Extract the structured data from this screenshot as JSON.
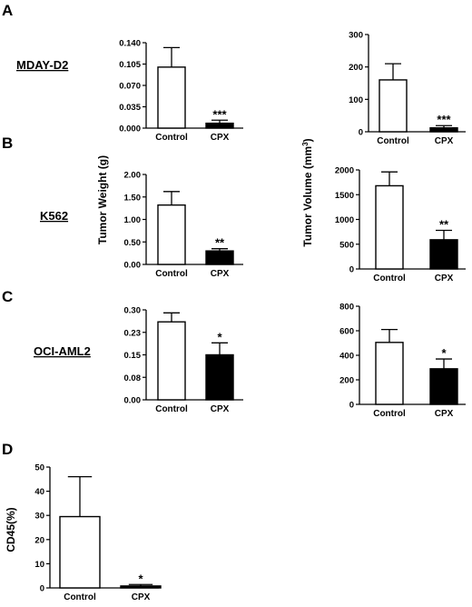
{
  "panels": {
    "A": {
      "label": "A",
      "row_label": "MDAY-D2"
    },
    "B": {
      "label": "B",
      "row_label": "K562"
    },
    "C": {
      "label": "C",
      "row_label": "OCI-AML2"
    },
    "D": {
      "label": "D"
    }
  },
  "y_titles": {
    "weight": "Tumor Weight (g)",
    "volume_main": "Tumor Volume (mm",
    "volume_sup": "3",
    "volume_close": ")",
    "cd45": "CD45(%)"
  },
  "chart_data": [
    {
      "id": "A-weight",
      "panel": "A",
      "type": "bar",
      "categories": [
        "Control",
        "CPX"
      ],
      "values": [
        0.1,
        0.008
      ],
      "errors": [
        0.032,
        0.005
      ],
      "ylim": [
        0,
        0.14
      ],
      "ticks": [
        0,
        0.035,
        0.07,
        0.105,
        0.14
      ],
      "tick_labels": [
        "0.000",
        "0.035",
        "0.070",
        "0.105",
        "0.140"
      ],
      "significance": [
        "",
        "***"
      ],
      "colors": [
        "#ffffff",
        "#000000"
      ]
    },
    {
      "id": "A-volume",
      "panel": "A",
      "type": "bar",
      "categories": [
        "Control",
        "CPX"
      ],
      "values": [
        160,
        12
      ],
      "errors": [
        50,
        7
      ],
      "ylim": [
        0,
        300
      ],
      "ticks": [
        0,
        100,
        200,
        300
      ],
      "tick_labels": [
        "0",
        "100",
        "200",
        "300"
      ],
      "significance": [
        "",
        "***"
      ],
      "colors": [
        "#ffffff",
        "#000000"
      ]
    },
    {
      "id": "B-weight",
      "panel": "B",
      "type": "bar",
      "categories": [
        "Control",
        "CPX"
      ],
      "values": [
        1.32,
        0.3
      ],
      "errors": [
        0.3,
        0.05
      ],
      "ylim": [
        0,
        2.0
      ],
      "ticks": [
        0,
        0.5,
        1.0,
        1.5,
        2.0
      ],
      "tick_labels": [
        "0.00",
        "0.50",
        "1.00",
        "1.50",
        "2.00"
      ],
      "significance": [
        "",
        "**"
      ],
      "colors": [
        "#ffffff",
        "#000000"
      ]
    },
    {
      "id": "B-volume",
      "panel": "B",
      "type": "bar",
      "categories": [
        "Control",
        "CPX"
      ],
      "values": [
        1680,
        590
      ],
      "errors": [
        280,
        190
      ],
      "ylim": [
        0,
        2000
      ],
      "ticks": [
        0,
        500,
        1000,
        1500,
        2000
      ],
      "tick_labels": [
        "0",
        "500",
        "1000",
        "1500",
        "2000"
      ],
      "significance": [
        "",
        "**"
      ],
      "colors": [
        "#ffffff",
        "#000000"
      ]
    },
    {
      "id": "C-weight",
      "panel": "C",
      "type": "bar",
      "categories": [
        "Control",
        "CPX"
      ],
      "values": [
        0.26,
        0.15
      ],
      "errors": [
        0.03,
        0.04
      ],
      "ylim": [
        0,
        0.3
      ],
      "ticks": [
        0,
        0.075,
        0.15,
        0.225,
        0.3
      ],
      "tick_labels": [
        "0.00",
        "0.08",
        "0.15",
        "0.23",
        "0.30"
      ],
      "significance": [
        "",
        "*"
      ],
      "colors": [
        "#ffffff",
        "#000000"
      ]
    },
    {
      "id": "C-volume",
      "panel": "C",
      "type": "bar",
      "categories": [
        "Control",
        "CPX"
      ],
      "values": [
        505,
        290
      ],
      "errors": [
        105,
        80
      ],
      "ylim": [
        0,
        800
      ],
      "ticks": [
        0,
        200,
        400,
        600,
        800
      ],
      "tick_labels": [
        "0",
        "200",
        "400",
        "600",
        "800"
      ],
      "significance": [
        "",
        "*"
      ],
      "colors": [
        "#ffffff",
        "#000000"
      ]
    },
    {
      "id": "D-cd45",
      "panel": "D",
      "type": "bar",
      "categories": [
        "Control",
        "CPX"
      ],
      "values": [
        29.5,
        0.8
      ],
      "errors": [
        16.5,
        0.6
      ],
      "ylim": [
        0,
        50
      ],
      "ticks": [
        0,
        10,
        20,
        30,
        40,
        50
      ],
      "tick_labels": [
        "0",
        "10",
        "20",
        "30",
        "40",
        "50"
      ],
      "significance": [
        "",
        "*"
      ],
      "colors": [
        "#ffffff",
        "#000000"
      ]
    }
  ]
}
